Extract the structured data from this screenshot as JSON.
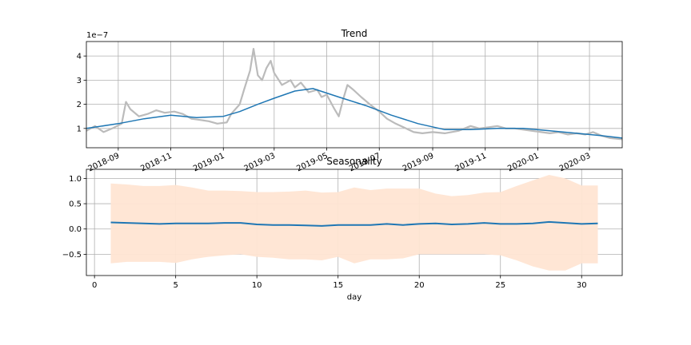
{
  "chart_data": [
    {
      "type": "line",
      "title": "Trend",
      "xlabel": "",
      "ylabel": "",
      "y_offset_label": "1e−7",
      "y_ticks": [
        1,
        2,
        3,
        4
      ],
      "y_tick_labels": [
        "1",
        "2",
        "3",
        "4"
      ],
      "ylim": [
        0.2,
        4.6
      ],
      "x_ticks": [
        "2018-09",
        "2018-11",
        "2019-01",
        "2019-03",
        "2019-05",
        "2019-07",
        "2019-09",
        "2019-11",
        "2020-01",
        "2020-03"
      ],
      "x_tick_labels": [
        "2018-09",
        "2018-11",
        "2019-01",
        "2019-03",
        "2019-05",
        "2019-07",
        "2019-09",
        "2019-11",
        "2020-01",
        "2020-03"
      ],
      "xlim": [
        "2018-07-26",
        "2020-04-08"
      ],
      "grid": true,
      "series": [
        {
          "color": "#bbbbbb",
          "x": [
            "2018-07-26",
            "2018-08-05",
            "2018-08-15",
            "2018-08-25",
            "2018-09-05",
            "2018-09-10",
            "2018-09-15",
            "2018-09-25",
            "2018-10-05",
            "2018-10-15",
            "2018-10-25",
            "2018-11-05",
            "2018-11-15",
            "2018-11-25",
            "2018-12-05",
            "2018-12-15",
            "2018-12-25",
            "2019-01-05",
            "2019-01-10",
            "2019-01-15",
            "2019-01-20",
            "2019-01-25",
            "2019-02-01",
            "2019-02-05",
            "2019-02-10",
            "2019-02-15",
            "2019-02-20",
            "2019-02-25",
            "2019-03-01",
            "2019-03-10",
            "2019-03-20",
            "2019-03-25",
            "2019-04-01",
            "2019-04-10",
            "2019-04-20",
            "2019-04-25",
            "2019-05-01",
            "2019-05-10",
            "2019-05-15",
            "2019-05-20",
            "2019-05-25",
            "2019-06-01",
            "2019-06-10",
            "2019-06-20",
            "2019-07-01",
            "2019-07-10",
            "2019-07-20",
            "2019-08-01",
            "2019-08-10",
            "2019-08-20",
            "2019-09-01",
            "2019-09-15",
            "2019-10-01",
            "2019-10-15",
            "2019-10-25",
            "2019-11-05",
            "2019-11-15",
            "2019-11-25",
            "2019-12-05",
            "2019-12-15",
            "2019-12-25",
            "2020-01-05",
            "2020-01-15",
            "2020-01-25",
            "2020-02-05",
            "2020-02-15",
            "2020-02-25",
            "2020-03-05",
            "2020-03-15",
            "2020-03-25",
            "2020-04-08"
          ],
          "y": [
            0.9,
            1.1,
            0.85,
            1.0,
            1.2,
            2.1,
            1.8,
            1.5,
            1.6,
            1.75,
            1.65,
            1.7,
            1.6,
            1.4,
            1.35,
            1.3,
            1.2,
            1.25,
            1.6,
            1.8,
            2.0,
            2.6,
            3.4,
            4.3,
            3.2,
            3.0,
            3.5,
            3.8,
            3.3,
            2.8,
            3.0,
            2.7,
            2.9,
            2.5,
            2.6,
            2.3,
            2.4,
            1.8,
            1.5,
            2.2,
            2.8,
            2.6,
            2.3,
            2.0,
            1.7,
            1.4,
            1.2,
            1.0,
            0.85,
            0.8,
            0.85,
            0.8,
            0.9,
            1.1,
            1.0,
            1.05,
            1.1,
            1.0,
            1.0,
            0.95,
            0.9,
            0.85,
            0.8,
            0.85,
            0.75,
            0.8,
            0.75,
            0.85,
            0.7,
            0.6,
            0.55
          ]
        },
        {
          "color": "#1f77b4",
          "x": [
            "2018-07-26",
            "2018-09-01",
            "2018-10-01",
            "2018-11-01",
            "2018-12-01",
            "2019-01-01",
            "2019-01-20",
            "2019-02-10",
            "2019-03-01",
            "2019-03-25",
            "2019-04-15",
            "2019-05-15",
            "2019-06-15",
            "2019-07-15",
            "2019-08-15",
            "2019-09-15",
            "2019-10-15",
            "2019-11-15",
            "2019-12-15",
            "2020-01-15",
            "2020-02-15",
            "2020-03-15",
            "2020-04-08"
          ],
          "y": [
            1.0,
            1.2,
            1.4,
            1.55,
            1.45,
            1.5,
            1.7,
            2.0,
            2.25,
            2.55,
            2.65,
            2.3,
            1.95,
            1.55,
            1.2,
            0.95,
            0.95,
            1.0,
            1.0,
            0.9,
            0.8,
            0.7,
            0.6
          ]
        }
      ]
    },
    {
      "type": "line",
      "title": "Seasonality",
      "xlabel": "day",
      "ylabel": "",
      "x_ticks": [
        0,
        5,
        10,
        15,
        20,
        25,
        30
      ],
      "x_tick_labels": [
        "0",
        "5",
        "10",
        "15",
        "20",
        "25",
        "30"
      ],
      "y_ticks": [
        -0.5,
        0.0,
        0.5,
        1.0
      ],
      "y_tick_labels": [
        "−0.5",
        "0.0",
        "0.5",
        "1.0"
      ],
      "xlim": [
        -0.5,
        32.5
      ],
      "ylim": [
        -0.92,
        1.18
      ],
      "grid": true,
      "band_color": "#ffe5d3",
      "line_color": "#1f77b4",
      "x": [
        1,
        2,
        3,
        4,
        5,
        6,
        7,
        8,
        9,
        10,
        11,
        12,
        13,
        14,
        15,
        16,
        17,
        18,
        19,
        20,
        21,
        22,
        23,
        24,
        25,
        26,
        27,
        28,
        29,
        30,
        31
      ],
      "y": [
        0.13,
        0.12,
        0.11,
        0.1,
        0.11,
        0.11,
        0.11,
        0.12,
        0.12,
        0.09,
        0.08,
        0.08,
        0.07,
        0.06,
        0.08,
        0.08,
        0.08,
        0.1,
        0.08,
        0.1,
        0.11,
        0.09,
        0.1,
        0.12,
        0.1,
        0.1,
        0.11,
        0.14,
        0.12,
        0.1,
        0.11
      ],
      "upper": [
        0.9,
        0.88,
        0.85,
        0.85,
        0.87,
        0.82,
        0.76,
        0.76,
        0.75,
        0.73,
        0.73,
        0.74,
        0.76,
        0.72,
        0.73,
        0.82,
        0.77,
        0.8,
        0.8,
        0.8,
        0.7,
        0.65,
        0.67,
        0.72,
        0.73,
        0.85,
        0.96,
        1.07,
        1.0,
        0.86,
        0.86
      ],
      "lower": [
        -0.68,
        -0.65,
        -0.65,
        -0.65,
        -0.67,
        -0.6,
        -0.55,
        -0.52,
        -0.5,
        -0.55,
        -0.57,
        -0.6,
        -0.6,
        -0.62,
        -0.55,
        -0.68,
        -0.6,
        -0.6,
        -0.58,
        -0.5,
        -0.5,
        -0.5,
        -0.5,
        -0.5,
        -0.52,
        -0.62,
        -0.74,
        -0.82,
        -0.82,
        -0.68,
        -0.68
      ]
    }
  ]
}
